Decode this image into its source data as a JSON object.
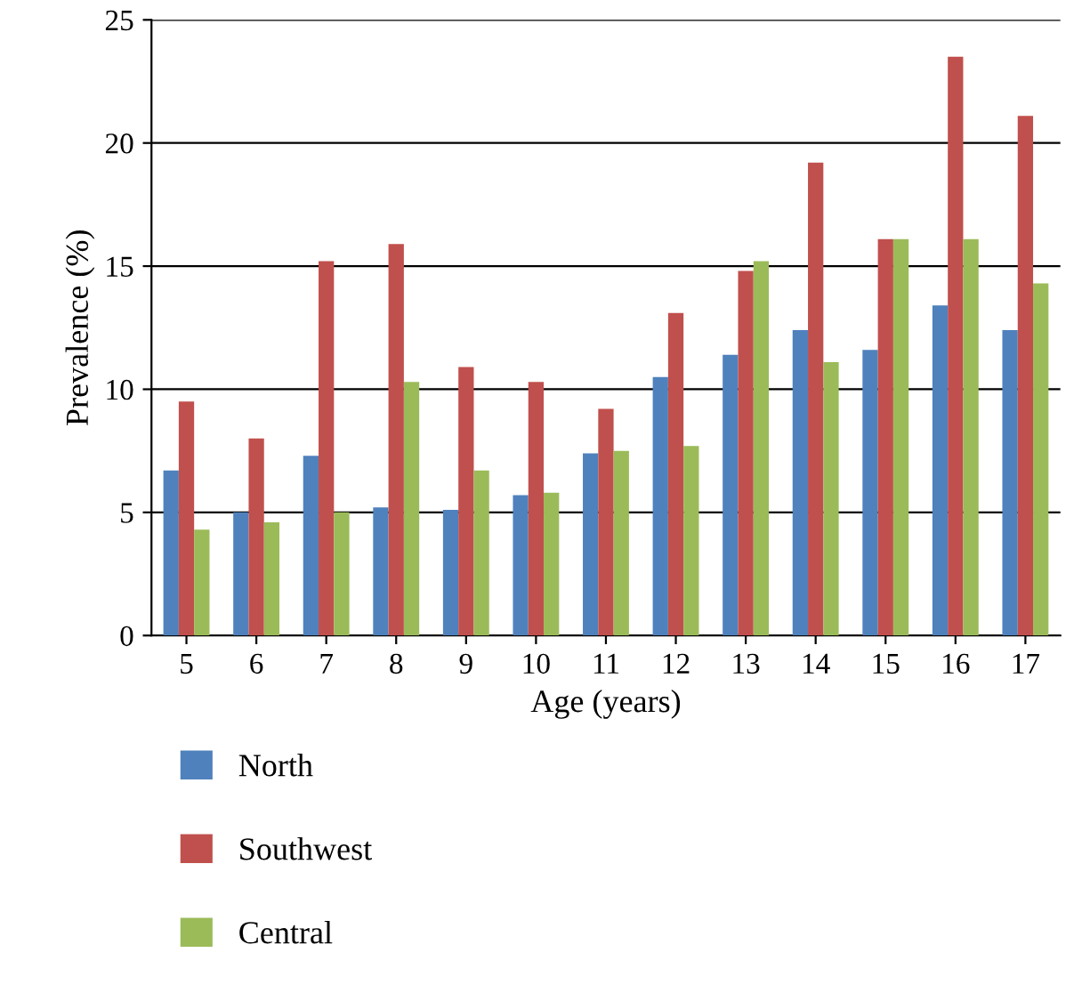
{
  "chart_data": {
    "type": "bar",
    "xlabel": "Age (years)",
    "ylabel": "Prevalence (%)",
    "categories": [
      "5",
      "6",
      "7",
      "8",
      "9",
      "10",
      "11",
      "12",
      "13",
      "14",
      "15",
      "16",
      "17"
    ],
    "series": [
      {
        "name": "North",
        "color": "#4f81bd",
        "values": [
          6.7,
          5.0,
          7.3,
          5.2,
          5.1,
          5.7,
          7.4,
          10.5,
          11.4,
          12.4,
          11.6,
          13.4,
          12.4
        ]
      },
      {
        "name": "Southwest",
        "color": "#c0504d",
        "values": [
          9.5,
          8.0,
          15.2,
          15.9,
          10.9,
          10.3,
          9.2,
          13.1,
          14.8,
          19.2,
          16.1,
          23.5,
          21.1
        ]
      },
      {
        "name": "Central",
        "color": "#9bbb59",
        "values": [
          4.3,
          4.6,
          5.0,
          10.3,
          6.7,
          5.8,
          7.5,
          7.7,
          15.2,
          11.1,
          16.1,
          16.1,
          14.3
        ]
      }
    ],
    "ylim": [
      0,
      25
    ],
    "yticks": [
      0,
      5,
      10,
      15,
      20,
      25
    ],
    "grid": "y",
    "legend": "bottom"
  }
}
